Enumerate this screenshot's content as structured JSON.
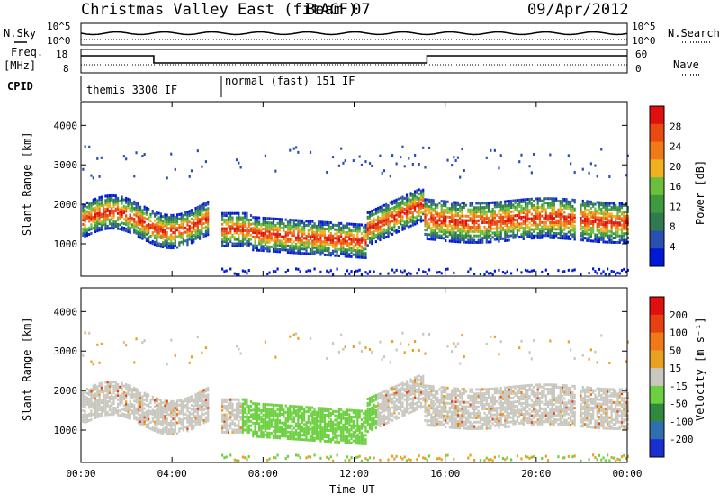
{
  "header": {
    "station": "Christmas Valley East (fitACF)",
    "beam": "Beam 07",
    "date": "09/Apr/2012"
  },
  "side_labels": {
    "nsky": "N.Sky",
    "nsearch": "N.Search",
    "freq_line1": "Freq.",
    "freq_line2": "[MHz]",
    "nave": "Nave",
    "cpid": "CPID"
  },
  "chart_data": [
    {
      "type": "line",
      "name": "noise",
      "y_left_ticks": [
        "10^5",
        "10^0"
      ],
      "y_right_ticks": [
        "10^5",
        "10^0"
      ],
      "series": [
        {
          "name": "N.Sky",
          "style": "solid"
        },
        {
          "name": "N.Search",
          "style": "dotted"
        }
      ]
    },
    {
      "type": "line",
      "name": "frequency",
      "y_left_ticks": [
        "18",
        "8"
      ],
      "y_right_ticks": [
        "60",
        "0"
      ],
      "series": [
        {
          "name": "Freq.",
          "style": "solid"
        },
        {
          "name": "Nave",
          "style": "dotted"
        }
      ]
    },
    {
      "type": "table",
      "name": "cpid",
      "segments": [
        {
          "label": "themis 3300 IF",
          "start_hour": 0.0,
          "end_hour": 6.0
        },
        {
          "label": "normal (fast) 151 IF",
          "start_hour": 6.0,
          "end_hour": 24.0
        }
      ]
    },
    {
      "type": "heatmap",
      "name": "power",
      "xlabel": "Time UT",
      "ylabel": "Slant Range [km]",
      "x_ticks": [
        "00:00",
        "04:00",
        "08:00",
        "12:00",
        "16:00",
        "20:00",
        "00:00"
      ],
      "y_ticks": [
        "1000",
        "2000",
        "3000",
        "4000"
      ],
      "xlim_hours": [
        0,
        24
      ],
      "ylim_km": [
        180,
        4600
      ],
      "colorbar": {
        "label": "Power [dB]",
        "ticks": [
          "28",
          "24",
          "20",
          "16",
          "12",
          "8",
          "4"
        ],
        "colors": [
          "#0018d8",
          "#2a4fb0",
          "#2f7a50",
          "#3f9a3f",
          "#6bbf3a",
          "#f0b020",
          "#f07a18",
          "#e84a10",
          "#e01010"
        ]
      }
    },
    {
      "type": "heatmap",
      "name": "velocity",
      "xlabel": "Time UT",
      "ylabel": "Slant Range [km]",
      "x_ticks": [
        "00:00",
        "04:00",
        "08:00",
        "12:00",
        "16:00",
        "20:00",
        "00:00"
      ],
      "y_ticks": [
        "1000",
        "2000",
        "3000",
        "4000"
      ],
      "xlim_hours": [
        0,
        24
      ],
      "ylim_km": [
        180,
        4600
      ],
      "colorbar": {
        "label": "Velocity [m s⁻¹]",
        "ticks": [
          "200",
          "100",
          "50",
          "15",
          "-15",
          "-50",
          "-100",
          "-200"
        ],
        "colors": [
          "#1a2fd0",
          "#2f6fb0",
          "#2f8a3f",
          "#6cd040",
          "#c8c8c0",
          "#e8a020",
          "#f07818",
          "#e84010",
          "#e01010"
        ]
      }
    }
  ]
}
